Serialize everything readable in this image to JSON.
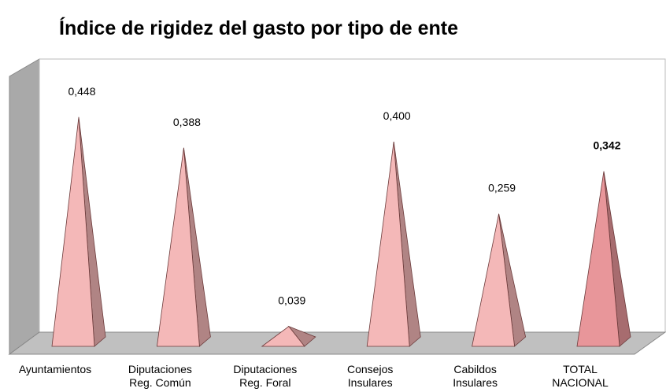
{
  "chart_data": {
    "type": "pyramid",
    "title": "Índice de rigidez del gasto por tipo de ente",
    "categories": [
      [
        "Ayuntamientos"
      ],
      [
        "Diputaciones",
        "Reg. Común"
      ],
      [
        "Diputaciones",
        "Reg. Foral"
      ],
      [
        "Consejos",
        "Insulares"
      ],
      [
        "Cabildos",
        "Insulares"
      ],
      [
        "TOTAL",
        "NACIONAL"
      ]
    ],
    "values": [
      0.448,
      0.388,
      0.039,
      0.4,
      0.259,
      0.342
    ],
    "value_labels": [
      "0,448",
      "0,388",
      "0,039",
      "0,400",
      "0,259",
      "0,342"
    ],
    "colors": [
      "#f4b8b8",
      "#f4b8b8",
      "#f4b8b8",
      "#f4b8b8",
      "#f4b8b8",
      "#e8969a"
    ]
  }
}
